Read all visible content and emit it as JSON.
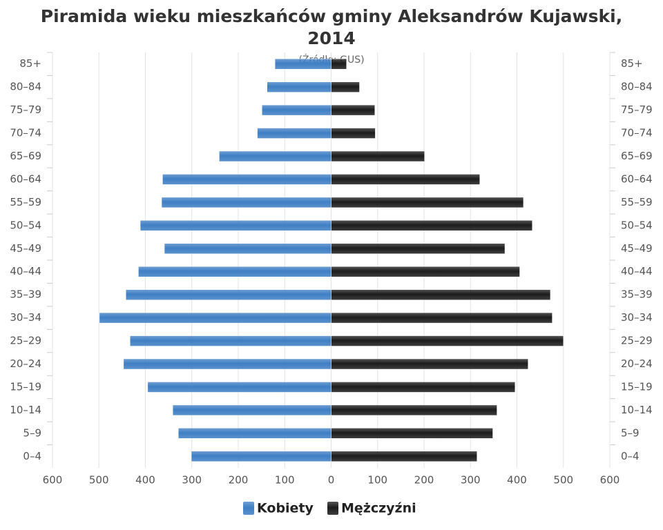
{
  "chart_data": {
    "type": "pyramid",
    "title": "Piramida wieku mieszkańców gminy Aleksandrów Kujawski, 2014",
    "subtitle": "(Źródło: GUS)",
    "categories": [
      "85+",
      "80–84",
      "75–79",
      "70–74",
      "65–69",
      "60–64",
      "55–59",
      "50–54",
      "45–49",
      "40–44",
      "35–39",
      "30–34",
      "25–29",
      "20–24",
      "15–19",
      "10–14",
      "5–9",
      "0–4"
    ],
    "series": [
      {
        "name": "Kobiety",
        "color": "#3f7fc4",
        "side": "left",
        "values": [
          121,
          138,
          149,
          159,
          241,
          363,
          365,
          411,
          359,
          415,
          442,
          499,
          433,
          447,
          395,
          341,
          329,
          301
        ]
      },
      {
        "name": "Mężczyźni",
        "color": "#1c1c1c",
        "side": "right",
        "values": [
          33,
          61,
          94,
          95,
          201,
          320,
          414,
          433,
          374,
          406,
          472,
          476,
          500,
          424,
          396,
          357,
          348,
          314
        ]
      }
    ],
    "xlim": [
      -600,
      600
    ],
    "xticks": [
      {
        "value": -600,
        "label": "600"
      },
      {
        "value": -500,
        "label": "500"
      },
      {
        "value": -400,
        "label": "400"
      },
      {
        "value": -300,
        "label": "300"
      },
      {
        "value": -200,
        "label": "200"
      },
      {
        "value": -100,
        "label": "100"
      },
      0,
      100,
      200,
      300,
      400,
      500,
      600
    ],
    "grid": true
  }
}
